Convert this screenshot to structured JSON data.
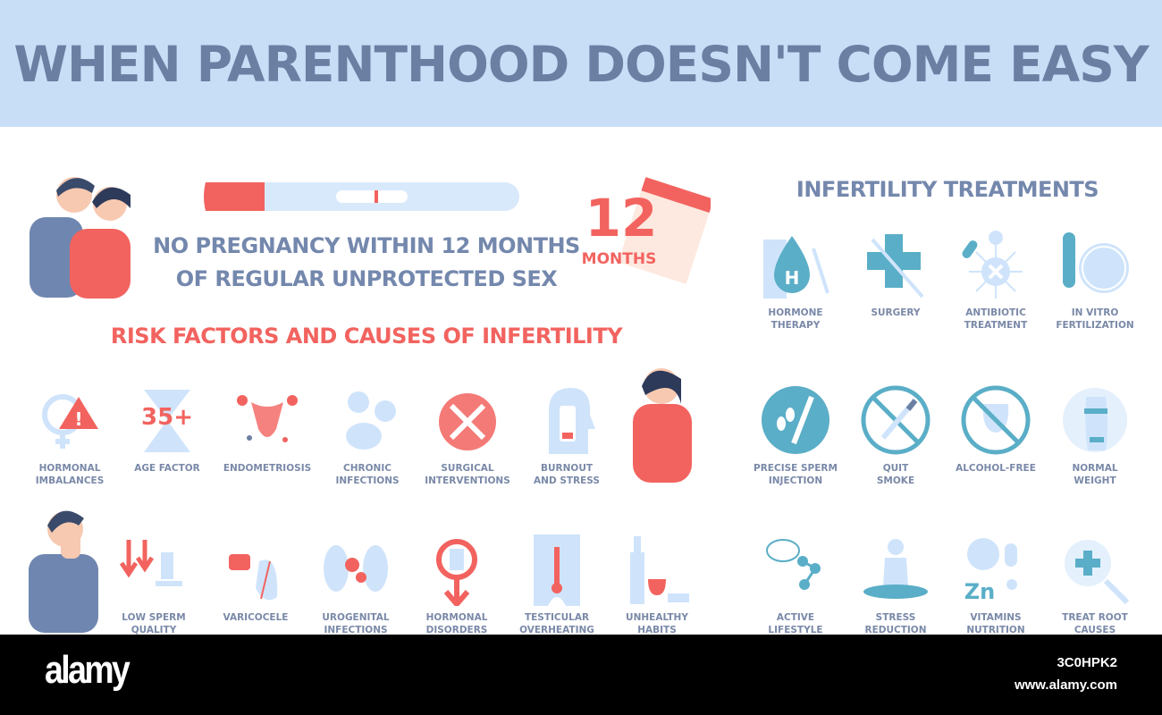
{
  "title": "WHEN PARENTHOOD DOESN'T COME EASY",
  "definition": {
    "line1": "NO PREGNANCY WITHIN 12 MONTHS",
    "line2": "OF REGULAR UNPROTECTED SEX",
    "number": "12",
    "unit": "MONTHS"
  },
  "risk_heading": "RISK FACTORS AND CAUSES OF INFERTILITY",
  "treatments_heading": "INFERTILITY TREATMENTS",
  "risk_row1": [
    {
      "label": [
        "HORMONAL",
        "IMBALANCES"
      ],
      "icon": "female-warning-icon"
    },
    {
      "label": [
        "AGE FACTOR"
      ],
      "icon": "hourglass-35-icon",
      "text": "35+"
    },
    {
      "label": [
        "ENDOMETRIOSIS"
      ],
      "icon": "uterus-icon"
    },
    {
      "label": [
        "CHRONIC",
        "INFECTIONS"
      ],
      "icon": "bacteria-icon"
    },
    {
      "label": [
        "SURGICAL",
        "INTERVENTIONS"
      ],
      "icon": "surgical-tools-icon"
    },
    {
      "label": [
        "BURNOUT",
        "AND STRESS"
      ],
      "icon": "low-battery-head-icon"
    }
  ],
  "risk_row2": [
    {
      "label": [
        "LOW SPERM",
        "QUALITY"
      ],
      "icon": "arrows-down-microscope-icon"
    },
    {
      "label": [
        "VARICOCELE"
      ],
      "icon": "varicocele-icon"
    },
    {
      "label": [
        "UROGENITAL",
        "INFECTIONS"
      ],
      "icon": "kidney-virus-icon"
    },
    {
      "label": [
        "HORMONAL",
        "DISORDERS"
      ],
      "icon": "male-symbol-icon"
    },
    {
      "label": [
        "TESTICULAR",
        "OVERHEATING"
      ],
      "icon": "thermometer-icon"
    },
    {
      "label": [
        "UNHEALTHY",
        "HABITS"
      ],
      "icon": "alcohol-smoke-icon"
    }
  ],
  "treatments": [
    {
      "label": [
        "HORMONE",
        "THERAPY"
      ],
      "icon": "hormone-drop-icon",
      "text": "H"
    },
    {
      "label": [
        "SURGERY"
      ],
      "icon": "medical-cross-icon"
    },
    {
      "label": [
        "ANTIBIOTIC",
        "TREATMENT"
      ],
      "icon": "virus-pill-icon"
    },
    {
      "label": [
        "IN VITRO",
        "FERTILIZATION"
      ],
      "icon": "test-tube-egg-icon"
    },
    {
      "label": [
        "PRECISE SPERM",
        "INJECTION"
      ],
      "icon": "sperm-pipette-icon"
    },
    {
      "label": [
        "QUIT",
        "SMOKE"
      ],
      "icon": "no-smoking-icon"
    },
    {
      "label": [
        "ALCOHOL-FREE"
      ],
      "icon": "no-alcohol-icon"
    },
    {
      "label": [
        "NORMAL",
        "WEIGHT"
      ],
      "icon": "body-icon"
    },
    {
      "label": [
        "ACTIVE",
        "LIFESTYLE"
      ],
      "icon": "tennis-icon"
    },
    {
      "label": [
        "STRESS",
        "REDUCTION"
      ],
      "icon": "meditation-icon"
    },
    {
      "label": [
        "VITAMINS",
        "NUTRITION"
      ],
      "icon": "vitamins-icon",
      "text": "Zn"
    },
    {
      "label": [
        "TREAT ROOT",
        "CAUSES"
      ],
      "icon": "magnifier-cross-icon"
    }
  ],
  "footer": {
    "brand": "alamy",
    "image_id": "3C0HPK2",
    "url": "www.alamy.com"
  },
  "colors": {
    "band": "#c8def7",
    "title": "#6b7fa3",
    "red": "#f2635f",
    "teal": "#5aaec7",
    "light_blue": "#cfe4fb"
  }
}
